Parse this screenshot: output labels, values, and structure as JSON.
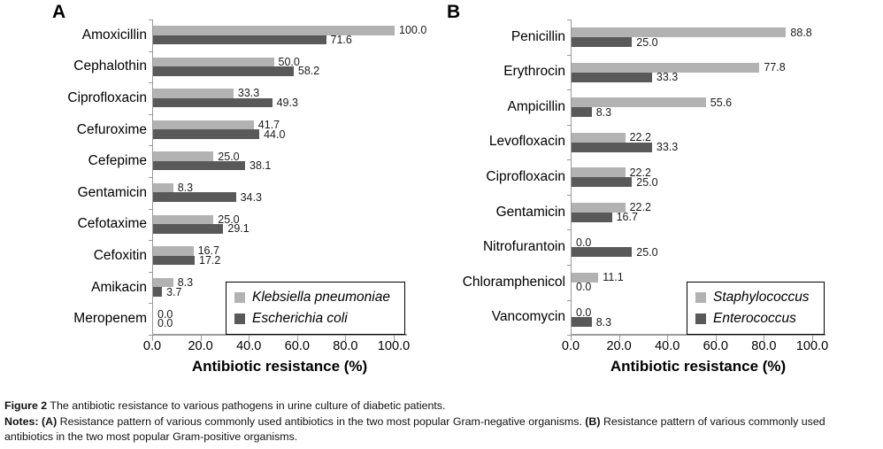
{
  "chart_data": [
    {
      "type": "bar",
      "orientation": "horizontal",
      "panel_label": "A",
      "categories": [
        "Amoxicillin",
        "Cephalothin",
        "Ciprofloxacin",
        "Cefuroxime",
        "Cefepime",
        "Gentamicin",
        "Cefotaxime",
        "Cefoxitin",
        "Amikacin",
        "Meropenem"
      ],
      "series": [
        {
          "name": "Klebsiella pneumoniae",
          "color": "#b2b2b2",
          "values": [
            100.0,
            50.0,
            33.3,
            41.7,
            25.0,
            8.3,
            25.0,
            16.7,
            8.3,
            0.0
          ]
        },
        {
          "name": "Escherichia coli",
          "color": "#595959",
          "values": [
            71.6,
            58.2,
            49.3,
            44.0,
            38.1,
            34.3,
            29.1,
            17.2,
            3.7,
            0.0
          ]
        }
      ],
      "xlabel": "Antibiotic resistance (%)",
      "xlim": [
        0,
        100
      ],
      "xticks": [
        0,
        20,
        40,
        60,
        80,
        100
      ],
      "xtick_labels": [
        "0.0",
        "20.0",
        "40.0",
        "60.0",
        "80.0",
        "100.0"
      ],
      "value_labels": true,
      "grid": false,
      "legend_position": "inside lower right"
    },
    {
      "type": "bar",
      "orientation": "horizontal",
      "panel_label": "B",
      "categories": [
        "Penicillin",
        "Erythrocin",
        "Ampicillin",
        "Levofloxacin",
        "Ciprofloxacin",
        "Gentamicin",
        "Nitrofurantoin",
        "Chloramphenicol",
        "Vancomycin"
      ],
      "series": [
        {
          "name": "Staphylococcus",
          "color": "#b2b2b2",
          "values": [
            88.8,
            77.8,
            55.6,
            22.2,
            22.2,
            22.2,
            0.0,
            11.1,
            0.0
          ]
        },
        {
          "name": "Enterococcus",
          "color": "#595959",
          "values": [
            25.0,
            33.3,
            8.3,
            33.3,
            25.0,
            16.7,
            25.0,
            0.0,
            8.3
          ]
        }
      ],
      "xlabel": "Antibiotic resistance (%)",
      "xlim": [
        0,
        100
      ],
      "xticks": [
        0,
        20,
        40,
        60,
        80,
        100
      ],
      "xtick_labels": [
        "0.0",
        "20.0",
        "40.0",
        "60.0",
        "80.0",
        "100.0"
      ],
      "value_labels": true,
      "grid": false,
      "legend_position": "inside lower right"
    }
  ],
  "caption": {
    "figure_label": "Figure 2",
    "figure_text": " The antibiotic resistance to various pathogens in urine culture of diabetic patients.",
    "notes_label": "Notes: ",
    "note_a_label": "(A)",
    "note_a_text": " Resistance pattern of various commonly used antibiotics in the two most popular Gram-negative organisms. ",
    "note_b_label": "(B)",
    "note_b_text": " Resistance pattern of various commonly used antibiotics in the two most popular Gram-positive organisms."
  }
}
